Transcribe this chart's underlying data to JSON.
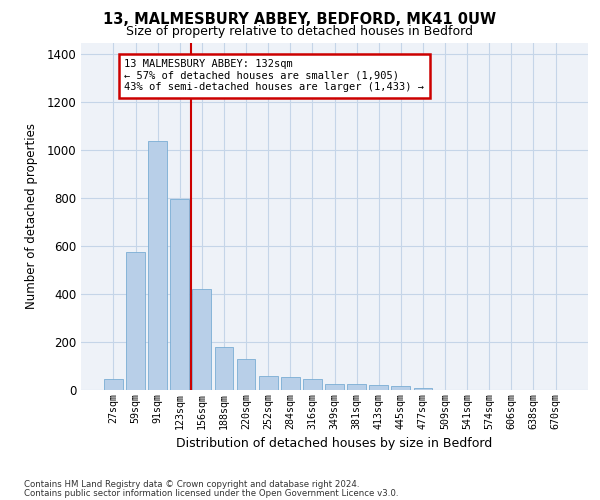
{
  "title_line1": "13, MALMESBURY ABBEY, BEDFORD, MK41 0UW",
  "title_line2": "Size of property relative to detached houses in Bedford",
  "xlabel": "Distribution of detached houses by size in Bedford",
  "ylabel": "Number of detached properties",
  "categories": [
    "27sqm",
    "59sqm",
    "91sqm",
    "123sqm",
    "156sqm",
    "188sqm",
    "220sqm",
    "252sqm",
    "284sqm",
    "316sqm",
    "349sqm",
    "381sqm",
    "413sqm",
    "445sqm",
    "477sqm",
    "509sqm",
    "541sqm",
    "574sqm",
    "606sqm",
    "638sqm",
    "670sqm"
  ],
  "values": [
    45,
    575,
    1040,
    795,
    420,
    180,
    130,
    60,
    55,
    45,
    27,
    25,
    20,
    15,
    10,
    0,
    0,
    0,
    0,
    0,
    0
  ],
  "bar_color": "#b8cfe8",
  "bar_edge_color": "#7aadd4",
  "vline_x_idx": 3,
  "vline_color": "#cc0000",
  "annotation_text": "13 MALMESBURY ABBEY: 132sqm\n← 57% of detached houses are smaller (1,905)\n43% of semi-detached houses are larger (1,433) →",
  "annotation_box_color": "#ffffff",
  "annotation_box_edgecolor": "#cc0000",
  "ylim": [
    0,
    1450
  ],
  "yticks": [
    0,
    200,
    400,
    600,
    800,
    1000,
    1200,
    1400
  ],
  "footer_line1": "Contains HM Land Registry data © Crown copyright and database right 2024.",
  "footer_line2": "Contains public sector information licensed under the Open Government Licence v3.0.",
  "plot_bg_color": "#eef2f8"
}
